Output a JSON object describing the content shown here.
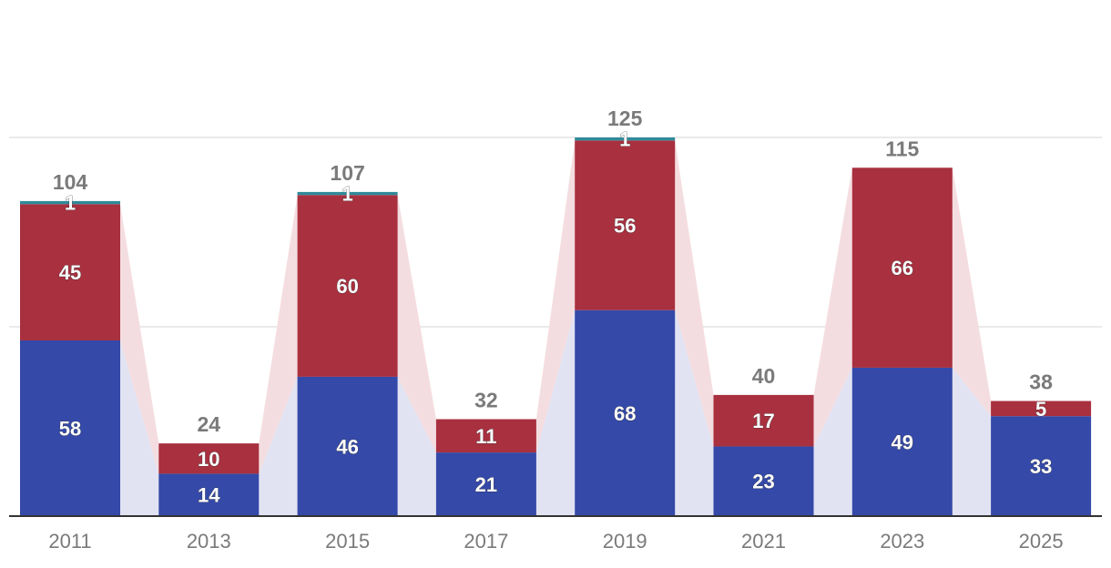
{
  "chart_data": {
    "type": "bar",
    "stacked": true,
    "categories": [
      "2011",
      "2013",
      "2015",
      "2017",
      "2019",
      "2021",
      "2023",
      "2025"
    ],
    "series": [
      {
        "values": [
          58,
          14,
          46,
          21,
          68,
          23,
          49,
          33
        ],
        "color": "#3449a8"
      },
      {
        "values": [
          45,
          10,
          60,
          11,
          56,
          17,
          66,
          5
        ],
        "color": "#a8303f"
      },
      {
        "values": [
          1,
          0,
          1,
          0,
          1,
          0,
          0,
          0
        ],
        "color": "#2f8a9a"
      }
    ],
    "totals": [
      104,
      24,
      107,
      32,
      125,
      40,
      115,
      38
    ],
    "connector_colors": [
      "#e1e3f3",
      "#f4dde0"
    ],
    "ylim": [
      0,
      125
    ],
    "grid": true,
    "legend": "none",
    "title": "",
    "xlabel": "",
    "ylabel": ""
  }
}
